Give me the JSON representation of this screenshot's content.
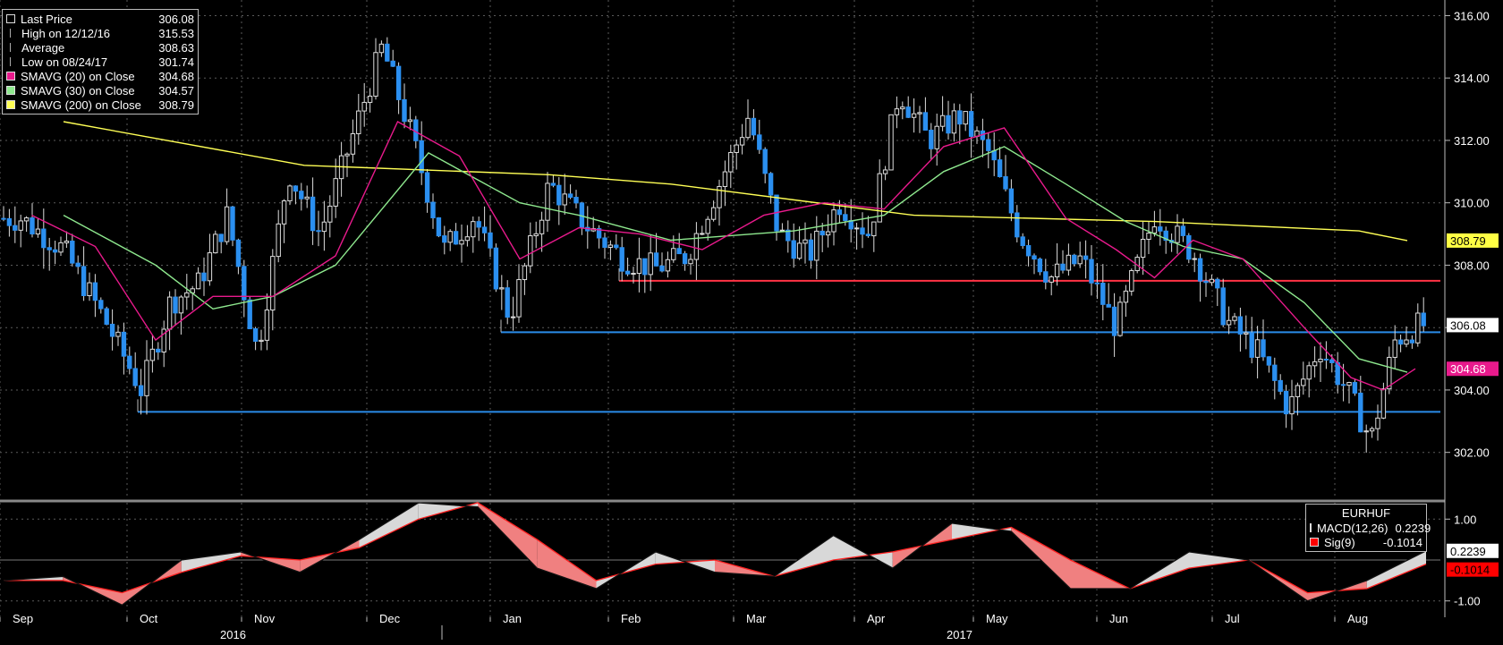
{
  "legend": {
    "rows": [
      {
        "label": "Last Price",
        "value": "306.08",
        "color": "#000000",
        "icon": "square-icon"
      },
      {
        "label": "High on 12/12/16",
        "value": "315.53",
        "color": "#aaaaaa",
        "icon": "high-marker-icon"
      },
      {
        "label": "Average",
        "value": "308.63",
        "color": "#aaaaaa",
        "icon": "average-line-icon"
      },
      {
        "label": "Low on 08/24/17",
        "value": "301.74",
        "color": "#aaaaaa",
        "icon": "low-marker-icon"
      },
      {
        "label": "SMAVG (20) on Close",
        "value": "304.68",
        "color": "#e81a8c",
        "icon": "square-icon"
      },
      {
        "label": "SMAVG (30) on Close",
        "value": "304.57",
        "color": "#8ee88e",
        "icon": "square-icon"
      },
      {
        "label": "SMAVG (200) on Close",
        "value": "308.79",
        "color": "#ffff55",
        "icon": "square-icon"
      }
    ]
  },
  "macd_legend": {
    "title": "EURHUF",
    "rows": [
      {
        "label": "MACD(12,26)",
        "value": "0.2239",
        "color": "#000000"
      },
      {
        "label": "Sig(9)",
        "value": "-0.1014",
        "color": "#ff0000"
      }
    ]
  },
  "x_axis": {
    "months": [
      "Sep",
      "Oct",
      "Nov",
      "Dec",
      "Jan",
      "Feb",
      "Mar",
      "Apr",
      "May",
      "Jun",
      "Jul",
      "Aug"
    ],
    "years": [
      "2016",
      "2017"
    ]
  },
  "price_labels": [
    {
      "text": "308.79",
      "value": 308.79,
      "bg": "#ffff44",
      "fg": "#000000"
    },
    {
      "text": "306.08",
      "value": 306.08,
      "bg": "#ffffff",
      "fg": "#000000"
    },
    {
      "text": "304.68",
      "value": 304.68,
      "bg": "#e81a8c",
      "fg": "#ffffff"
    }
  ],
  "macd_labels": [
    {
      "text": "0.2239",
      "value": 0.2239,
      "bg": "#ffffff",
      "fg": "#000000"
    },
    {
      "text": "-0.1014",
      "value": -0.1014,
      "bg": "#ff0000",
      "fg": "#000000"
    }
  ],
  "chart_data": [
    {
      "type": "candlestick",
      "series_name": "EURHUF",
      "x": [
        "Sep 2016",
        "Oct 2016",
        "Nov 2016",
        "Dec 2016",
        "Jan 2017",
        "Feb 2017",
        "Mar 2017",
        "Apr 2017",
        "May 2017",
        "Jun 2017",
        "Jul 2017",
        "Aug 2017"
      ],
      "ylim": [
        300.5,
        316.5
      ],
      "y_ticks": [
        302,
        304,
        306,
        308,
        310,
        312,
        314,
        316
      ],
      "y_tick_labels": [
        "302.00",
        "304.00",
        "306.00",
        "308.00",
        "310.00",
        "312.00",
        "314.00",
        "316.00"
      ],
      "price_path": [
        {
          "x": "Sep 2016",
          "y": 309.5
        },
        {
          "x": "Sep 2016",
          "y": 308.5
        },
        {
          "x": "Sep 2016",
          "y": 306.2
        },
        {
          "x": "Oct 2016",
          "y": 304.0
        },
        {
          "x": "Oct 2016",
          "y": 306.8
        },
        {
          "x": "Oct 2016",
          "y": 307.4
        },
        {
          "x": "Oct 2016",
          "y": 309.6
        },
        {
          "x": "Nov 2016",
          "y": 305.2
        },
        {
          "x": "Nov 2016",
          "y": 311.0
        },
        {
          "x": "Nov 2016",
          "y": 309.0
        },
        {
          "x": "Nov 2016",
          "y": 312.0
        },
        {
          "x": "Dec 2016",
          "y": 315.0
        },
        {
          "x": "Dec 2016",
          "y": 312.0
        },
        {
          "x": "Dec 2016",
          "y": 308.5
        },
        {
          "x": "Dec 2016",
          "y": 309.6
        },
        {
          "x": "Jan 2017",
          "y": 306.3
        },
        {
          "x": "Jan 2017",
          "y": 310.6
        },
        {
          "x": "Jan 2017",
          "y": 309.2
        },
        {
          "x": "Feb 2017",
          "y": 308.2
        },
        {
          "x": "Feb 2017",
          "y": 307.9
        },
        {
          "x": "Feb 2017",
          "y": 308.3
        },
        {
          "x": "Feb 2017",
          "y": 310.5
        },
        {
          "x": "Mar 2017",
          "y": 312.8
        },
        {
          "x": "Mar 2017",
          "y": 309.0
        },
        {
          "x": "Mar 2017",
          "y": 308.3
        },
        {
          "x": "Mar 2017",
          "y": 310.0
        },
        {
          "x": "Apr 2017",
          "y": 309.0
        },
        {
          "x": "Apr 2017",
          "y": 313.6
        },
        {
          "x": "Apr 2017",
          "y": 312.0
        },
        {
          "x": "Apr 2017",
          "y": 312.8
        },
        {
          "x": "May 2017",
          "y": 311.6
        },
        {
          "x": "May 2017",
          "y": 309.0
        },
        {
          "x": "May 2017",
          "y": 307.6
        },
        {
          "x": "May 2017",
          "y": 308.2
        },
        {
          "x": "Jun 2017",
          "y": 306.0
        },
        {
          "x": "Jun 2017",
          "y": 309.6
        },
        {
          "x": "Jun 2017",
          "y": 308.4
        },
        {
          "x": "Jul 2017",
          "y": 306.2
        },
        {
          "x": "Jul 2017",
          "y": 305.2
        },
        {
          "x": "Jul 2017",
          "y": 303.4
        },
        {
          "x": "Jul 2017",
          "y": 305.4
        },
        {
          "x": "Aug 2017",
          "y": 304.0
        },
        {
          "x": "Aug 2017",
          "y": 302.4
        },
        {
          "x": "Aug 2017",
          "y": 305.6
        },
        {
          "x": "Aug 2017",
          "y": 306.08
        }
      ],
      "sma20": [
        {
          "x": "Sep 2016",
          "y": 309.6
        },
        {
          "x": "Sep 2016",
          "y": 308.6
        },
        {
          "x": "Oct 2016",
          "y": 305.6
        },
        {
          "x": "Oct 2016",
          "y": 307.0
        },
        {
          "x": "Nov 2016",
          "y": 307.0
        },
        {
          "x": "Nov 2016",
          "y": 308.3
        },
        {
          "x": "Dec 2016",
          "y": 312.6
        },
        {
          "x": "Dec 2016",
          "y": 311.5
        },
        {
          "x": "Jan 2017",
          "y": 308.2
        },
        {
          "x": "Jan 2017",
          "y": 309.2
        },
        {
          "x": "Feb 2017",
          "y": 309.0
        },
        {
          "x": "Feb 2017",
          "y": 308.5
        },
        {
          "x": "Mar 2017",
          "y": 309.6
        },
        {
          "x": "Mar 2017",
          "y": 310.0
        },
        {
          "x": "Apr 2017",
          "y": 309.8
        },
        {
          "x": "Apr 2017",
          "y": 311.8
        },
        {
          "x": "May 2017",
          "y": 312.4
        },
        {
          "x": "May 2017",
          "y": 309.5
        },
        {
          "x": "Jun 2017",
          "y": 308.5
        },
        {
          "x": "Jun 2017",
          "y": 307.6
        },
        {
          "x": "Jun 2017",
          "y": 308.8
        },
        {
          "x": "Jul 2017",
          "y": 308.2
        },
        {
          "x": "Jul 2017",
          "y": 306.0
        },
        {
          "x": "Aug 2017",
          "y": 304.4
        },
        {
          "x": "Aug 2017",
          "y": 304.0
        },
        {
          "x": "Aug 2017",
          "y": 304.68
        }
      ],
      "sma30": [
        {
          "x": "Sep 2016",
          "y": 309.6
        },
        {
          "x": "Oct 2016",
          "y": 308.0
        },
        {
          "x": "Oct 2016",
          "y": 306.6
        },
        {
          "x": "Nov 2016",
          "y": 307.0
        },
        {
          "x": "Nov 2016",
          "y": 308.0
        },
        {
          "x": "Dec 2016",
          "y": 311.6
        },
        {
          "x": "Jan 2017",
          "y": 310.0
        },
        {
          "x": "Jan 2017",
          "y": 309.6
        },
        {
          "x": "Feb 2017",
          "y": 308.8
        },
        {
          "x": "Mar 2017",
          "y": 309.1
        },
        {
          "x": "Apr 2017",
          "y": 309.6
        },
        {
          "x": "Apr 2017",
          "y": 311.0
        },
        {
          "x": "May 2017",
          "y": 311.8
        },
        {
          "x": "May 2017",
          "y": 310.6
        },
        {
          "x": "Jun 2017",
          "y": 309.4
        },
        {
          "x": "Jun 2017",
          "y": 308.6
        },
        {
          "x": "Jul 2017",
          "y": 308.2
        },
        {
          "x": "Jul 2017",
          "y": 306.8
        },
        {
          "x": "Aug 2017",
          "y": 305.0
        },
        {
          "x": "Aug 2017",
          "y": 304.57
        }
      ],
      "sma200": [
        {
          "x": "Sep 2016",
          "y": 312.6
        },
        {
          "x": "Nov 2016",
          "y": 311.2
        },
        {
          "x": "Jan 2017",
          "y": 310.9
        },
        {
          "x": "Feb 2017",
          "y": 310.6
        },
        {
          "x": "Apr 2017",
          "y": 309.6
        },
        {
          "x": "Jun 2017",
          "y": 309.4
        },
        {
          "x": "Aug 2017",
          "y": 309.1
        },
        {
          "x": "Aug 2017",
          "y": 308.79
        }
      ],
      "support_resistance": [
        {
          "y": 307.5,
          "from": "Feb 2017",
          "to": "Aug 2017",
          "color": "#ff3344"
        },
        {
          "y": 305.85,
          "from": "Jan 2017",
          "to": "Aug 2017",
          "color": "#2a8be8"
        },
        {
          "y": 303.3,
          "from": "Oct 2016",
          "to": "Aug 2017",
          "color": "#2a8be8"
        }
      ]
    },
    {
      "type": "line",
      "title": "EURHUF",
      "ylim": [
        -1.4,
        1.4
      ],
      "y_ticks": [
        -1,
        1
      ],
      "y_tick_labels": [
        "-1.00",
        "1.00"
      ],
      "series": [
        {
          "name": "MACD(12,26)",
          "values": [
            -0.5,
            -0.4,
            -1.1,
            0.0,
            0.2,
            -0.3,
            0.5,
            1.4,
            1.3,
            -0.2,
            -0.7,
            0.2,
            -0.3,
            -0.4,
            0.6,
            -0.2,
            0.9,
            0.7,
            -0.7,
            -0.7,
            0.2,
            0.0,
            -1.0,
            -0.5,
            0.2239
          ]
        },
        {
          "name": "Sig(9)",
          "values": [
            -0.5,
            -0.5,
            -0.8,
            -0.3,
            0.1,
            0.0,
            0.3,
            1.0,
            1.4,
            0.5,
            -0.5,
            -0.1,
            0.0,
            -0.4,
            0.0,
            0.2,
            0.5,
            0.8,
            0.0,
            -0.7,
            -0.2,
            0.0,
            -0.8,
            -0.7,
            -0.1014
          ]
        }
      ]
    }
  ]
}
